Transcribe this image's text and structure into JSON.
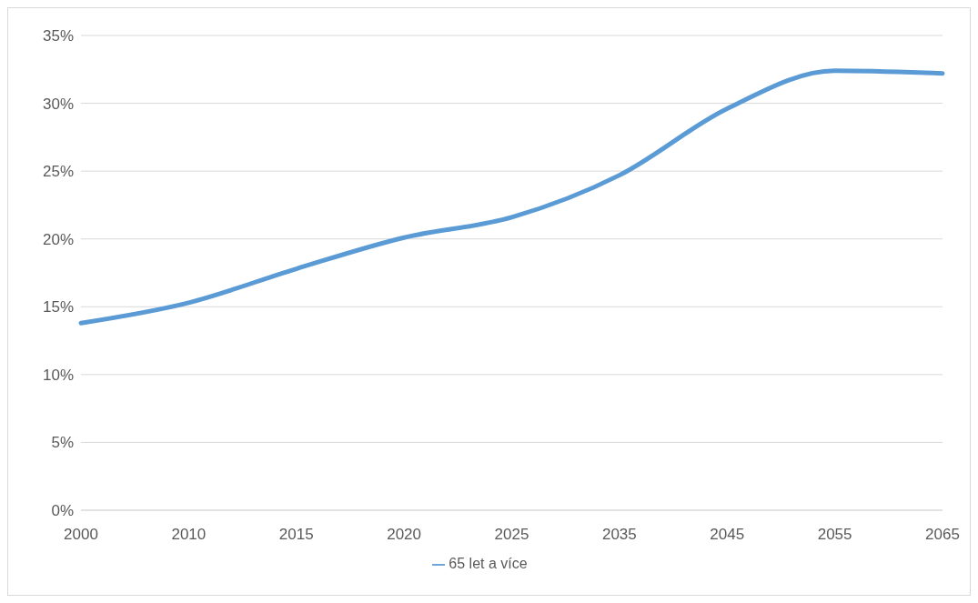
{
  "chart_data": {
    "type": "line",
    "categories": [
      "2000",
      "2010",
      "2015",
      "2020",
      "2025",
      "2035",
      "2045",
      "2055",
      "2065"
    ],
    "series": [
      {
        "name": "65 let a více",
        "color": "#5b9bd5",
        "values": [
          13.8,
          15.3,
          17.8,
          20.1,
          21.6,
          24.7,
          29.6,
          32.4,
          32.2
        ]
      }
    ],
    "ylim": [
      0,
      35
    ],
    "yticks": [
      {
        "value": 0,
        "label": "0%"
      },
      {
        "value": 5,
        "label": "5%"
      },
      {
        "value": 10,
        "label": "10%"
      },
      {
        "value": 15,
        "label": "15%"
      },
      {
        "value": 20,
        "label": "20%"
      },
      {
        "value": 25,
        "label": "25%"
      },
      {
        "value": 30,
        "label": "30%"
      },
      {
        "value": 35,
        "label": "35%"
      }
    ],
    "grid": "y",
    "legend": "bottom",
    "marker": "none",
    "line_style": "solid"
  }
}
